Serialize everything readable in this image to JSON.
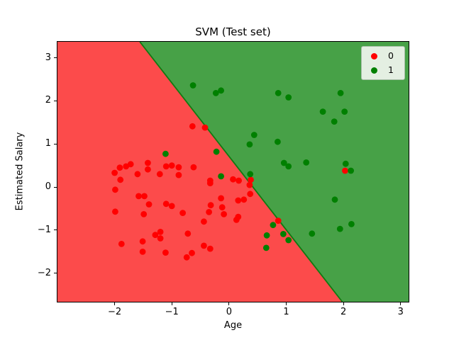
{
  "chart_data": {
    "type": "scatter",
    "title": "SVM (Test set)",
    "xlabel": "Age",
    "ylabel": "Estimated Salary",
    "xlim": [
      -3.0,
      3.14
    ],
    "ylim": [
      -2.66,
      3.37
    ],
    "grid": false,
    "legend_position": "upper right",
    "xticks": {
      "values": [
        -2,
        -1,
        0,
        1,
        2,
        3
      ],
      "labels": [
        "−2",
        "−1",
        "0",
        "1",
        "2",
        "3"
      ]
    },
    "yticks": {
      "values": [
        3,
        2,
        1,
        0,
        -1,
        -2
      ],
      "labels": [
        "3",
        "2",
        "1",
        "0",
        "−1",
        "−2"
      ]
    },
    "decision_boundary": {
      "type": "line",
      "equation": "y ≈ -1.71x + 0.71",
      "x1": -1.56,
      "y1": 3.37,
      "x2": 1.98,
      "y2": -2.66
    },
    "regions": [
      {
        "class": "0",
        "side": "left-of-boundary",
        "color": "#fc4b4b"
      },
      {
        "class": "1",
        "side": "right-of-boundary",
        "color": "#47a147"
      }
    ],
    "series": [
      {
        "name": "0",
        "color": "#ff0000",
        "points": [
          [
            -0.64,
            1.41
          ],
          [
            -0.42,
            1.38
          ],
          [
            -2.0,
            0.33
          ],
          [
            -1.91,
            0.45
          ],
          [
            -1.8,
            0.48
          ],
          [
            -1.72,
            0.53
          ],
          [
            -1.6,
            0.3
          ],
          [
            -1.9,
            0.17
          ],
          [
            -1.42,
            0.56
          ],
          [
            -1.42,
            0.41
          ],
          [
            -1.21,
            0.3
          ],
          [
            -1.1,
            0.48
          ],
          [
            -1.0,
            0.5
          ],
          [
            -0.88,
            0.46
          ],
          [
            -0.88,
            0.28
          ],
          [
            -1.99,
            -0.06
          ],
          [
            -1.58,
            -0.21
          ],
          [
            -1.48,
            -0.21
          ],
          [
            -1.4,
            -0.4
          ],
          [
            -1.1,
            -0.39
          ],
          [
            -1.0,
            -0.44
          ],
          [
            -1.99,
            -0.57
          ],
          [
            -1.49,
            -0.63
          ],
          [
            -0.62,
            0.46
          ],
          [
            -0.33,
            0.15
          ],
          [
            -0.33,
            0.09
          ],
          [
            0.07,
            0.18
          ],
          [
            0.17,
            0.15
          ],
          [
            0.38,
            0.17
          ],
          [
            0.36,
            0.05
          ],
          [
            -0.14,
            -0.26
          ],
          [
            0.37,
            -0.16
          ],
          [
            0.16,
            -0.31
          ],
          [
            0.26,
            -0.29
          ],
          [
            -0.32,
            -0.42
          ],
          [
            -0.12,
            -0.47
          ],
          [
            -0.35,
            -0.58
          ],
          [
            -0.09,
            -0.63
          ],
          [
            0.16,
            -0.69
          ],
          [
            -0.81,
            -0.6
          ],
          [
            -1.88,
            -1.32
          ],
          [
            -1.51,
            -1.26
          ],
          [
            -1.29,
            -1.11
          ],
          [
            -1.2,
            -1.04
          ],
          [
            -1.2,
            -1.19
          ],
          [
            -1.51,
            -1.5
          ],
          [
            -1.11,
            -1.52
          ],
          [
            -0.44,
            -0.8
          ],
          [
            0.13,
            -0.76
          ],
          [
            -0.72,
            -1.08
          ],
          [
            -0.44,
            -1.36
          ],
          [
            -0.33,
            -1.43
          ],
          [
            -0.65,
            -1.53
          ],
          [
            -0.74,
            -1.63
          ],
          [
            0.86,
            -0.78
          ],
          [
            2.03,
            0.38
          ]
        ]
      },
      {
        "name": "1",
        "color": "#008000",
        "points": [
          [
            -0.63,
            2.36
          ],
          [
            -0.23,
            2.18
          ],
          [
            -0.14,
            2.24
          ],
          [
            0.86,
            2.18
          ],
          [
            1.04,
            2.08
          ],
          [
            1.95,
            2.18
          ],
          [
            1.64,
            1.75
          ],
          [
            2.02,
            1.75
          ],
          [
            1.84,
            1.52
          ],
          [
            -1.11,
            0.77
          ],
          [
            -0.22,
            0.82
          ],
          [
            0.44,
            1.21
          ],
          [
            0.36,
            0.99
          ],
          [
            0.85,
            1.05
          ],
          [
            0.96,
            0.56
          ],
          [
            1.04,
            0.48
          ],
          [
            -0.14,
            0.25
          ],
          [
            0.37,
            0.3
          ],
          [
            1.35,
            0.57
          ],
          [
            2.04,
            0.54
          ],
          [
            2.13,
            0.38
          ],
          [
            1.85,
            -0.29
          ],
          [
            0.77,
            -0.88
          ],
          [
            0.66,
            -1.12
          ],
          [
            0.95,
            -1.09
          ],
          [
            1.04,
            -1.23
          ],
          [
            0.65,
            -1.41
          ],
          [
            1.45,
            -1.08
          ],
          [
            1.94,
            -0.97
          ],
          [
            2.14,
            -0.86
          ]
        ]
      }
    ],
    "colors": {
      "region_class0": "#fc4b4b",
      "region_class1": "#47a147",
      "boundary_edge": "#117a11",
      "point_class0": "#ff0000",
      "point_class1": "#008000",
      "legend_bg": "#e4efe2",
      "legend_border": "#a9bfa9",
      "axis": "#000000"
    }
  }
}
